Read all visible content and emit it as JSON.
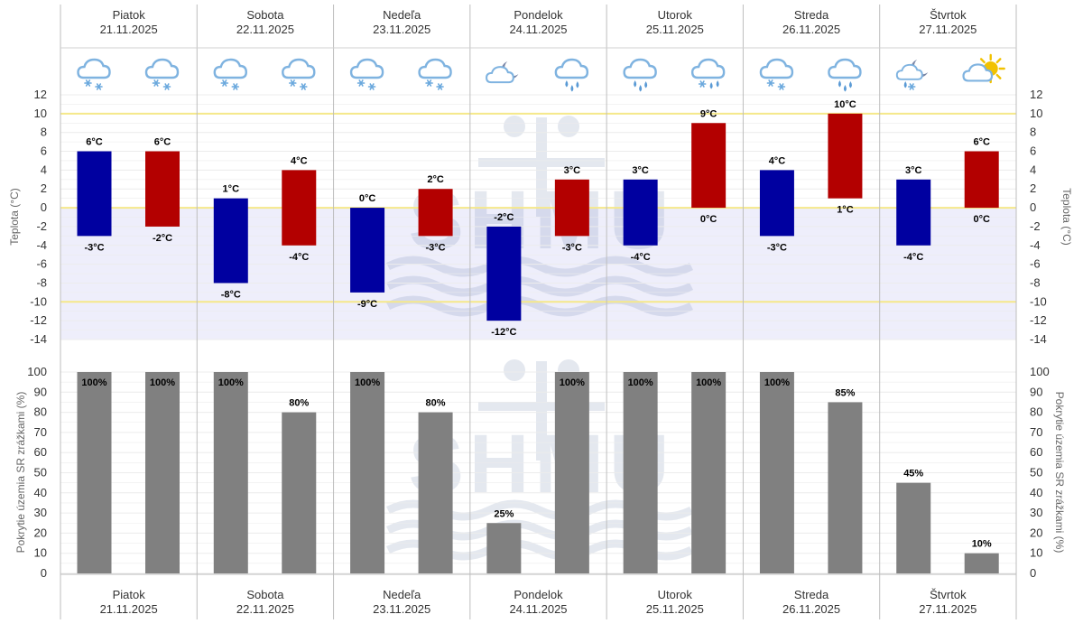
{
  "colors": {
    "min_bar": "#0000a0",
    "max_bar": "#b30000",
    "precip_bar": "#808080",
    "below_zero_band": "#eeeefb",
    "highlight_line": "#f5e88a",
    "grid": "#dcdcdc"
  },
  "chart_data": [
    {
      "type": "bar",
      "title": "",
      "ylabel_left": "Teplota (°C)",
      "ylabel_right": "Teplota (°C)",
      "ylim": [
        -14,
        12
      ],
      "yticks": [
        12,
        10,
        8,
        6,
        4,
        2,
        0,
        -2,
        -4,
        -6,
        -8,
        -10,
        -12,
        -14
      ],
      "highlight_lines": [
        10,
        0,
        -10
      ],
      "days": [
        {
          "name": "Piatok",
          "date": "21.11.2025"
        },
        {
          "name": "Sobota",
          "date": "22.11.2025"
        },
        {
          "name": "Nedeľa",
          "date": "23.11.2025"
        },
        {
          "name": "Pondelok",
          "date": "24.11.2025"
        },
        {
          "name": "Utorok",
          "date": "25.11.2025"
        },
        {
          "name": "Streda",
          "date": "26.11.2025"
        },
        {
          "name": "Štvrtok",
          "date": "27.11.2025"
        }
      ],
      "series": [
        {
          "name": "night",
          "color": "#0000a0",
          "ranges": [
            [
              -3,
              6
            ],
            [
              -8,
              1
            ],
            [
              -9,
              0
            ],
            [
              -12,
              -2
            ],
            [
              -4,
              3
            ],
            [
              -3,
              4
            ],
            [
              -4,
              3
            ]
          ],
          "top_labels": [
            "6°C",
            "1°C",
            "0°C",
            "-2°C",
            "3°C",
            "4°C",
            "3°C"
          ],
          "bottom_labels": [
            "-3°C",
            "-8°C",
            "-9°C",
            "-12°C",
            "-4°C",
            "-3°C",
            "-4°C"
          ],
          "icons": [
            "cloud-snow-icon",
            "cloud-snow-icon",
            "cloud-snow-icon",
            "moon-cloud-icon",
            "cloud-rain-icon",
            "cloud-snow-icon",
            "moon-cloud-sleet-icon"
          ]
        },
        {
          "name": "day",
          "color": "#b30000",
          "ranges": [
            [
              -2,
              6
            ],
            [
              -4,
              4
            ],
            [
              -3,
              2
            ],
            [
              -3,
              3
            ],
            [
              0,
              9
            ],
            [
              1,
              10
            ],
            [
              0,
              6
            ]
          ],
          "top_labels": [
            "6°C",
            "4°C",
            "2°C",
            "3°C",
            "9°C",
            "10°C",
            "6°C"
          ],
          "bottom_labels": [
            "-2°C",
            "-4°C",
            "-3°C",
            "-3°C",
            "0°C",
            "1°C",
            "0°C"
          ],
          "icons": [
            "cloud-snow-icon",
            "cloud-snow-icon",
            "cloud-snow-icon",
            "cloud-rain-icon",
            "cloud-sleet-icon",
            "cloud-rain-icon",
            "sun-cloud-icon"
          ]
        }
      ]
    },
    {
      "type": "bar",
      "title": "",
      "ylabel_left": "Pokrytie územia SR zrážkami (%)",
      "ylabel_right": "Pokrytie územia SR zrážkami (%)",
      "ylim": [
        0,
        100
      ],
      "yticks": [
        100,
        90,
        80,
        70,
        60,
        50,
        40,
        30,
        20,
        10,
        0
      ],
      "series": [
        {
          "name": "night",
          "values": [
            100,
            100,
            100,
            25,
            100,
            100,
            45
          ],
          "labels": [
            "100%",
            "100%",
            "100%",
            "25%",
            "100%",
            "100%",
            "45%"
          ]
        },
        {
          "name": "day",
          "values": [
            100,
            80,
            80,
            100,
            100,
            85,
            10
          ],
          "labels": [
            "100%",
            "80%",
            "80%",
            "100%",
            "100%",
            "85%",
            "10%"
          ]
        }
      ]
    }
  ]
}
